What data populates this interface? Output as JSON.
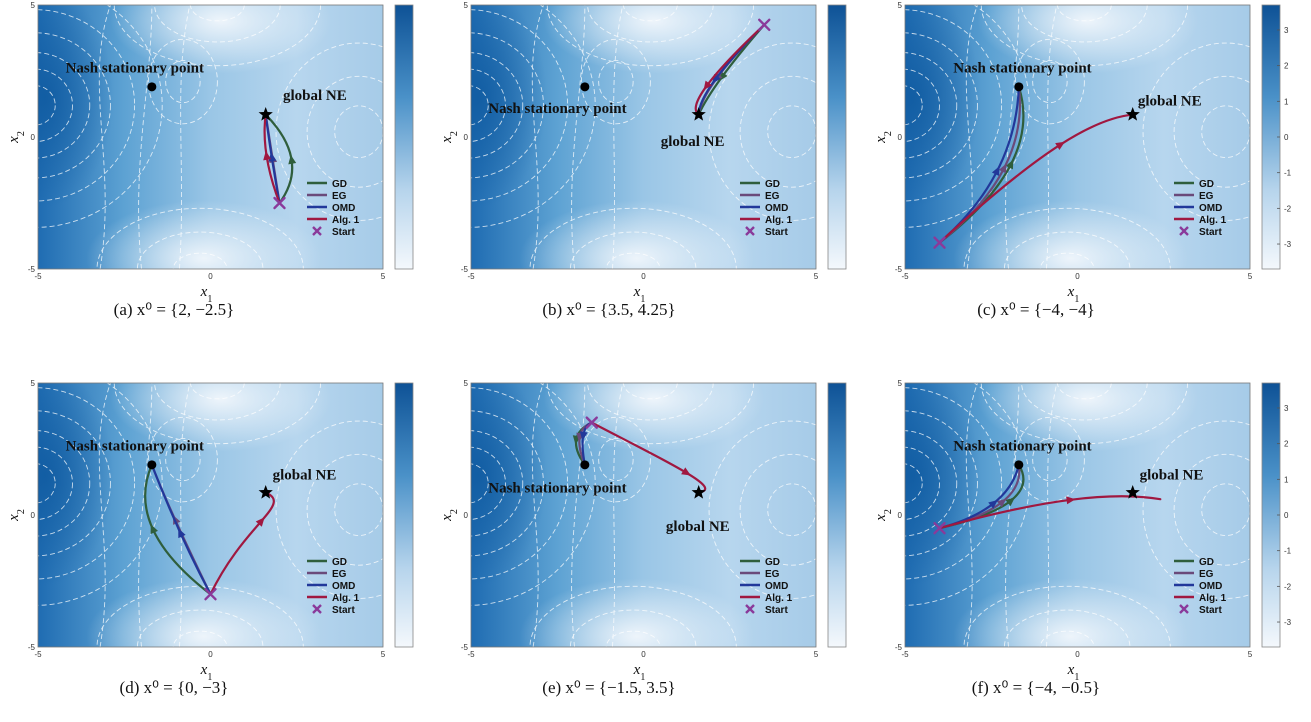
{
  "figure": {
    "colors": {
      "GD": "#2f5e3c",
      "EG": "#6a4a7a",
      "OMD": "#22389a",
      "Alg. 1": "#a01840",
      "Start": "#8a3a9a",
      "cmap_low": "#eef5fb",
      "cmap_high": "#0e5296"
    },
    "legend_labels": [
      "GD",
      "EG",
      "OMD",
      "Alg. 1",
      "Start"
    ],
    "axis_ticks": [
      "-5",
      "0",
      "5"
    ],
    "colorbar_ticks": [
      "3",
      "2",
      "1",
      "0",
      "-1",
      "-2",
      "-3"
    ],
    "nash_point": [
      -1.7,
      1.9
    ],
    "global_ne": [
      1.6,
      0.85
    ]
  },
  "chart_data": [
    {
      "type": "contour",
      "caption": "(a) x⁰ = {2, −2.5}",
      "xlabel": "x1",
      "ylabel": "x2",
      "xlim": [
        -5,
        5
      ],
      "ylim": [
        -5,
        5
      ],
      "colorbar_ticks": false,
      "annotations": [
        {
          "text": "Nash stationary point",
          "at": [
            -1.7,
            1.9
          ]
        },
        {
          "text": "global NE",
          "at": [
            1.6,
            0.85
          ]
        }
      ],
      "start": [
        2,
        -2.5
      ],
      "series": [
        {
          "name": "GD",
          "x": [
            2,
            2.9,
            1.6
          ],
          "y": [
            -2.5,
            -0.9,
            0.85
          ]
        },
        {
          "name": "EG",
          "x": [
            2,
            1.8,
            1.6
          ],
          "y": [
            -2.5,
            -0.8,
            0.85
          ]
        },
        {
          "name": "OMD",
          "x": [
            2,
            1.75,
            1.6
          ],
          "y": [
            -2.5,
            -0.7,
            0.85
          ]
        },
        {
          "name": "Alg. 1",
          "x": [
            2,
            1.45,
            1.6
          ],
          "y": [
            -2.5,
            -0.6,
            0.85
          ]
        }
      ]
    },
    {
      "type": "contour",
      "caption": "(b) x⁰ = {3.5, 4.25}",
      "xlabel": "x1",
      "ylabel": "x2",
      "xlim": [
        -5,
        5
      ],
      "ylim": [
        -5,
        5
      ],
      "colorbar_ticks": false,
      "annotations": [
        {
          "text": "Nash stationary point",
          "at": [
            -1.7,
            1.9
          ]
        },
        {
          "text": "global NE",
          "at": [
            1.6,
            0.85
          ]
        }
      ],
      "start": [
        3.5,
        4.25
      ],
      "series": [
        {
          "name": "GD",
          "x": [
            3.5,
            2.0,
            1.6
          ],
          "y": [
            4.25,
            2.0,
            0.85
          ]
        },
        {
          "name": "EG",
          "x": [
            3.5,
            1.7,
            1.6
          ],
          "y": [
            4.25,
            1.9,
            0.85
          ]
        },
        {
          "name": "OMD",
          "x": [
            3.5,
            1.6,
            1.6
          ],
          "y": [
            4.25,
            1.8,
            0.85
          ]
        },
        {
          "name": "Alg. 1",
          "x": [
            3.5,
            1.1,
            1.6
          ],
          "y": [
            4.25,
            1.3,
            0.85
          ]
        }
      ]
    },
    {
      "type": "contour",
      "caption": "(c) x⁰ = {−4, −4}",
      "xlabel": "x1",
      "ylabel": "x2",
      "xlim": [
        -5,
        5
      ],
      "ylim": [
        -5,
        5
      ],
      "colorbar_ticks": true,
      "annotations": [
        {
          "text": "Nash stationary point",
          "at": [
            -1.7,
            1.9
          ]
        },
        {
          "text": "global NE",
          "at": [
            1.6,
            0.85
          ]
        }
      ],
      "start": [
        -4,
        -4
      ],
      "series": [
        {
          "name": "GD",
          "x": [
            -4,
            -1.0,
            -1.7
          ],
          "y": [
            -4,
            -1.0,
            1.9
          ]
        },
        {
          "name": "EG",
          "x": [
            -4,
            -1.4,
            -1.7
          ],
          "y": [
            -4,
            -1.3,
            1.9
          ]
        },
        {
          "name": "OMD",
          "x": [
            -4,
            -1.8,
            -1.7
          ],
          "y": [
            -4,
            -1.5,
            1.9
          ]
        },
        {
          "name": "Alg. 1",
          "x": [
            -4,
            -1.0,
            0.5,
            1.6
          ],
          "y": [
            -4,
            -0.4,
            0.7,
            0.85
          ]
        }
      ]
    },
    {
      "type": "contour",
      "caption": "(d) x⁰ = {0, −3}",
      "xlabel": "x1",
      "ylabel": "x2",
      "xlim": [
        -5,
        5
      ],
      "ylim": [
        -5,
        5
      ],
      "colorbar_ticks": false,
      "annotations": [
        {
          "text": "Nash stationary point",
          "at": [
            -1.7,
            1.9
          ]
        },
        {
          "text": "global NE",
          "at": [
            1.6,
            0.85
          ]
        }
      ],
      "start": [
        0,
        -3
      ],
      "series": [
        {
          "name": "GD",
          "x": [
            0,
            -2.5,
            -1.7
          ],
          "y": [
            -3,
            -0.5,
            1.9
          ]
        },
        {
          "name": "EG",
          "x": [
            0,
            -1.2,
            -1.7
          ],
          "y": [
            -3,
            0.2,
            1.9
          ]
        },
        {
          "name": "OMD",
          "x": [
            0,
            -0.9,
            -1.7
          ],
          "y": [
            -3,
            -0.8,
            1.9
          ]
        },
        {
          "name": "Alg. 1",
          "x": [
            0,
            1.0,
            2.4,
            1.6
          ],
          "y": [
            -3,
            -0.3,
            0.4,
            0.85
          ]
        }
      ]
    },
    {
      "type": "contour",
      "caption": "(e) x⁰ = {−1.5, 3.5}",
      "xlabel": "x1",
      "ylabel": "x2",
      "xlim": [
        -5,
        5
      ],
      "ylim": [
        -5,
        5
      ],
      "colorbar_ticks": false,
      "annotations": [
        {
          "text": "Nash stationary point",
          "at": [
            -1.7,
            1.9
          ]
        },
        {
          "text": "global NE",
          "at": [
            1.6,
            0.85
          ]
        }
      ],
      "start": [
        -1.5,
        3.5
      ],
      "series": [
        {
          "name": "GD",
          "x": [
            -1.5,
            -2.3,
            -1.7
          ],
          "y": [
            3.5,
            3.0,
            1.9
          ]
        },
        {
          "name": "EG",
          "x": [
            -1.5,
            -2.1,
            -1.7
          ],
          "y": [
            3.5,
            3.2,
            1.9
          ]
        },
        {
          "name": "OMD",
          "x": [
            -1.5,
            -1.9,
            -1.7
          ],
          "y": [
            3.5,
            3.3,
            1.9
          ]
        },
        {
          "name": "Alg. 1",
          "x": [
            -1.5,
            1.0,
            2.3,
            1.6
          ],
          "y": [
            3.5,
            1.8,
            1.0,
            0.85
          ]
        }
      ]
    },
    {
      "type": "contour",
      "caption": "(f) x⁰ = {−4, −0.5}",
      "xlabel": "x1",
      "ylabel": "x2",
      "xlim": [
        -5,
        5
      ],
      "ylim": [
        -5,
        5
      ],
      "colorbar_ticks": true,
      "annotations": [
        {
          "text": "Nash stationary point",
          "at": [
            -1.7,
            1.9
          ]
        },
        {
          "text": "global NE",
          "at": [
            1.6,
            0.85
          ]
        }
      ],
      "start": [
        -4,
        -0.5
      ],
      "series": [
        {
          "name": "GD",
          "x": [
            -4,
            -1.0,
            -1.7
          ],
          "y": [
            -0.5,
            0.4,
            1.9
          ]
        },
        {
          "name": "EG",
          "x": [
            -4,
            -1.5,
            -1.7
          ],
          "y": [
            -0.5,
            0.3,
            1.9
          ]
        },
        {
          "name": "OMD",
          "x": [
            -4,
            -2.0,
            -1.7
          ],
          "y": [
            -0.5,
            0.2,
            1.9
          ]
        },
        {
          "name": "Alg. 1",
          "x": [
            -4,
            -1.0,
            1.0,
            2.4
          ],
          "y": [
            -0.5,
            0.6,
            0.9,
            0.6
          ]
        }
      ]
    }
  ]
}
